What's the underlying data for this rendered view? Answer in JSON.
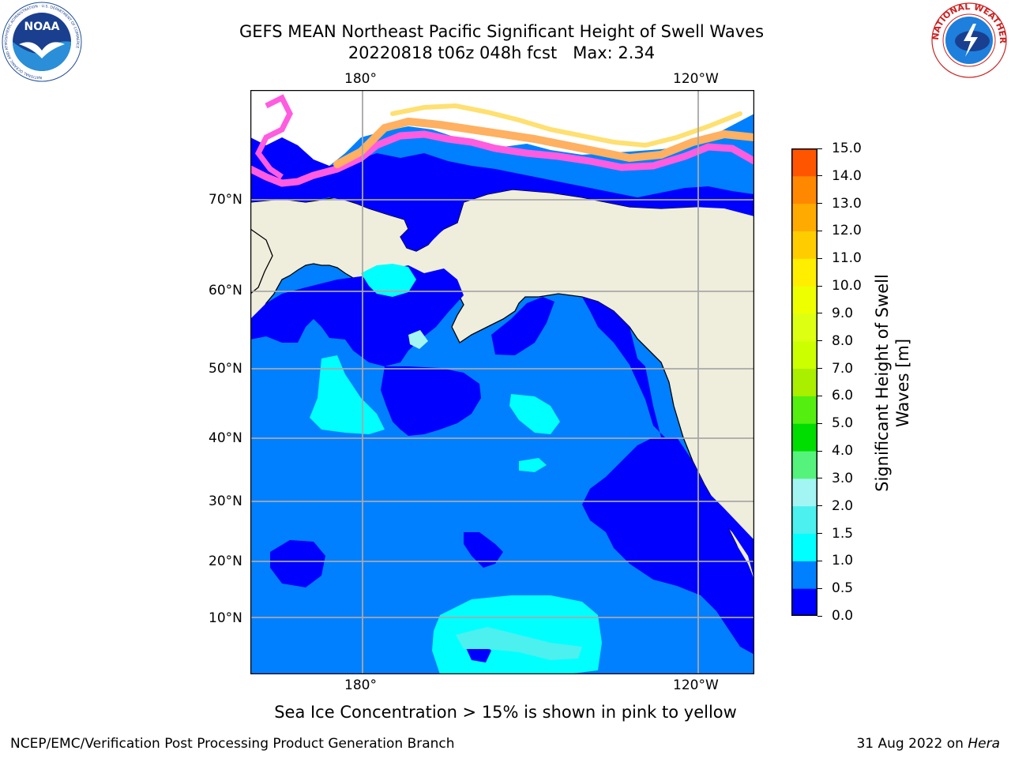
{
  "header": {
    "title_line1": "GEFS MEAN Northeast Pacific Significant Height of Swell Waves",
    "title_line2": "20220818 t06z 048h fcst   Max: 2.34"
  },
  "logos": {
    "left": "NOAA",
    "left_ring_text": "NATIONAL OCEANIC AND ATMOSPHERIC ADMINISTRATION · U.S. DEPARTMENT OF COMMERCE",
    "right_ring_text": "NATIONAL WEATHER SERVICE"
  },
  "map": {
    "lon_ticks_top": [
      "180°",
      "120°W"
    ],
    "lon_ticks_bottom": [
      "180°",
      "120°W"
    ],
    "lat_ticks": [
      "70°N",
      "60°N",
      "50°N",
      "40°N",
      "30°N",
      "20°N",
      "10°N"
    ],
    "colors": {
      "land": "#efeddc",
      "band_0_0_5": "#0000ff",
      "band_0_5_1_0": "#0080ff",
      "band_1_0_1_5": "#00ffff",
      "band_1_5_2_0": "#4cf0ef",
      "band_2_0_3_0": "#a3f5f4",
      "ice_pink": "#ff5ce0",
      "ice_orange": "#ffb060",
      "ice_yellow": "#ffe070",
      "grid": "#a8a8a8"
    }
  },
  "colorbar": {
    "label_line1": "Significant Height of Swell",
    "label_line2": "Waves [m]",
    "ticks": [
      "15.0",
      "14.0",
      "13.0",
      "12.0",
      "11.0",
      "10.0",
      "9.0",
      "8.0",
      "7.0",
      "6.0",
      "5.0",
      "4.0",
      "3.0",
      "2.0",
      "1.5",
      "1.0",
      "0.5",
      "0.0"
    ],
    "colors_bottom_to_top": [
      "#0000ff",
      "#0080ff",
      "#00ffff",
      "#4cf0ef",
      "#a3f5f4",
      "#55f37b",
      "#00dd00",
      "#55ee11",
      "#aaee00",
      "#ccff00",
      "#ddff11",
      "#eeff00",
      "#ffee00",
      "#ffcc00",
      "#ffaa00",
      "#ff8800",
      "#ff5500",
      "#ff2200",
      "#ff0000"
    ]
  },
  "captions": {
    "sea_ice_note": "Sea Ice Concentration > 15% is shown in pink to yellow",
    "credit": "NCEP/EMC/Verification Post Processing Product Generation Branch",
    "date_prefix": "31 Aug 2022 on ",
    "date_host": "Hera"
  }
}
